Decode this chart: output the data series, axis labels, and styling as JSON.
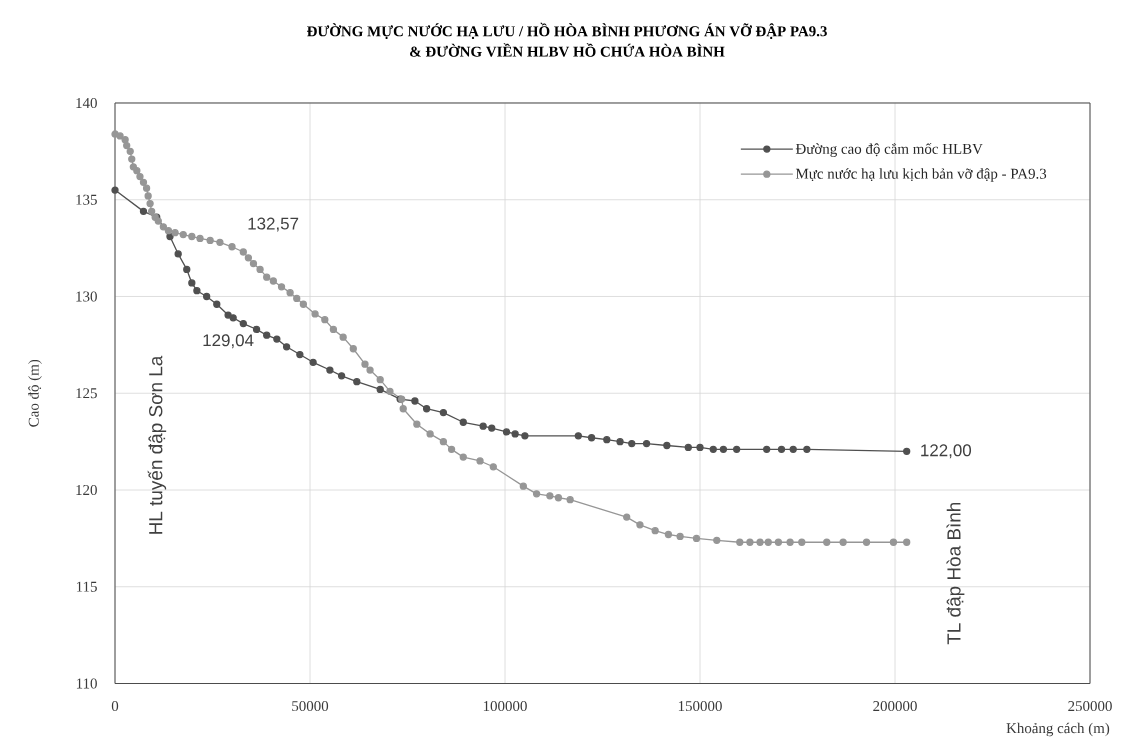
{
  "chart_data": {
    "type": "line",
    "title": "ĐƯỜNG MỰC NƯỚC HẠ LƯU / HỒ HÒA BÌNH PHƯƠNG ÁN VỠ ĐẬP PA9.3",
    "subtitle": "& ĐƯỜNG VIỀN HLBV HỒ CHỨA HÒA BÌNH",
    "xlabel": "Khoảng cách (m)",
    "ylabel": "Cao độ (m)",
    "annotations": [
      "HL tuyến đập Sơn La",
      "TL đập Hòa Bình"
    ],
    "xlim": [
      0,
      250000
    ],
    "ylim": [
      110,
      140
    ],
    "xticks": [
      0,
      50000,
      100000,
      150000,
      200000,
      250000
    ],
    "yticks": [
      110,
      115,
      120,
      125,
      130,
      135,
      140
    ],
    "grid": true,
    "legend": "top right",
    "marker": "circle",
    "line_style": "solid",
    "series": [
      {
        "name": "Đường cao độ cắm mốc HLBV",
        "color": "#505050",
        "x": [
          0,
          7300,
          10700,
          14100,
          16200,
          18400,
          19700,
          21000,
          23500,
          26100,
          29000,
          30300,
          32900,
          36300,
          38900,
          41500,
          44000,
          47400,
          50800,
          55100,
          58100,
          62000,
          68000,
          73100,
          76900,
          79900,
          84200,
          89300,
          94400,
          96600,
          100400,
          102600,
          105100,
          118800,
          122200,
          126100,
          129500,
          132500,
          136300,
          141500,
          147000,
          150000,
          153400,
          156000,
          159400,
          167100,
          170900,
          173900,
          177400,
          203000
        ],
        "values": [
          135.5,
          134.4,
          134.1,
          133.1,
          132.2,
          131.4,
          130.7,
          130.3,
          130.0,
          129.6,
          129.04,
          128.9,
          128.6,
          128.3,
          128.0,
          127.8,
          127.4,
          127.0,
          126.6,
          126.2,
          125.9,
          125.6,
          125.2,
          124.7,
          124.6,
          124.2,
          124.0,
          123.5,
          123.3,
          123.2,
          123.0,
          122.9,
          122.8,
          122.8,
          122.7,
          122.6,
          122.5,
          122.4,
          122.4,
          122.3,
          122.2,
          122.2,
          122.1,
          122.1,
          122.1,
          122.1,
          122.1,
          122.1,
          122.1,
          122.0
        ],
        "value_labels": [
          null,
          null,
          null,
          null,
          null,
          null,
          null,
          null,
          null,
          null,
          "129,04",
          null,
          null,
          null,
          null,
          null,
          null,
          null,
          null,
          null,
          null,
          null,
          null,
          null,
          null,
          null,
          null,
          null,
          null,
          null,
          null,
          null,
          null,
          null,
          null,
          null,
          null,
          null,
          null,
          null,
          null,
          null,
          null,
          null,
          null,
          null,
          null,
          null,
          null,
          "122,00"
        ]
      },
      {
        "name": "Mực nước hạ lưu kịch bản vỡ đập - PA9.3",
        "color": "#969696",
        "x": [
          0,
          1300,
          2600,
          3000,
          3900,
          4300,
          4700,
          5600,
          6400,
          7300,
          8100,
          8500,
          9000,
          9400,
          10300,
          11100,
          12400,
          13700,
          15400,
          17500,
          19700,
          21800,
          24400,
          26900,
          30000,
          32900,
          34200,
          35500,
          37200,
          38900,
          40600,
          42700,
          44900,
          46600,
          48300,
          51300,
          53800,
          56000,
          58500,
          61100,
          64100,
          65400,
          68000,
          70500,
          73500,
          73900,
          77400,
          80800,
          84200,
          86300,
          89300,
          93600,
          97000,
          104700,
          108100,
          111500,
          113700,
          116700,
          131200,
          134600,
          138500,
          141900,
          144900,
          149100,
          154300,
          160200,
          162800,
          165400,
          167500,
          170100,
          173100,
          176100,
          182500,
          186700,
          192700,
          199600,
          203000
        ],
        "values": [
          138.4,
          138.3,
          138.1,
          137.8,
          137.5,
          137.1,
          136.7,
          136.5,
          136.2,
          135.9,
          135.6,
          135.2,
          134.8,
          134.4,
          134.1,
          133.9,
          133.6,
          133.4,
          133.3,
          133.2,
          133.1,
          133.0,
          132.9,
          132.8,
          132.57,
          132.3,
          132.0,
          131.7,
          131.4,
          131.0,
          130.8,
          130.5,
          130.2,
          129.9,
          129.6,
          129.1,
          128.8,
          128.3,
          127.9,
          127.3,
          126.5,
          126.2,
          125.7,
          125.1,
          124.7,
          124.2,
          123.4,
          122.9,
          122.5,
          122.1,
          121.7,
          121.5,
          121.2,
          120.2,
          119.8,
          119.7,
          119.6,
          119.5,
          118.6,
          118.2,
          117.9,
          117.7,
          117.6,
          117.5,
          117.4,
          117.3,
          117.3,
          117.3,
          117.3,
          117.3,
          117.3,
          117.3,
          117.3,
          117.3,
          117.3,
          117.3,
          117.3
        ],
        "value_labels": [
          null,
          null,
          null,
          null,
          null,
          null,
          null,
          null,
          null,
          null,
          null,
          null,
          null,
          null,
          null,
          null,
          null,
          null,
          null,
          null,
          null,
          null,
          null,
          null,
          "132,57",
          null,
          null,
          null,
          null,
          null,
          null,
          null,
          null,
          null,
          null,
          null,
          null,
          null,
          null,
          null,
          null,
          null,
          null,
          null,
          null,
          null,
          null,
          null,
          null,
          null,
          null,
          null,
          null,
          null,
          null,
          null,
          null,
          null,
          null,
          null,
          null,
          null,
          null,
          null,
          null,
          null,
          null,
          null,
          null,
          null,
          null,
          null,
          null,
          null,
          null,
          null,
          null
        ]
      }
    ]
  }
}
